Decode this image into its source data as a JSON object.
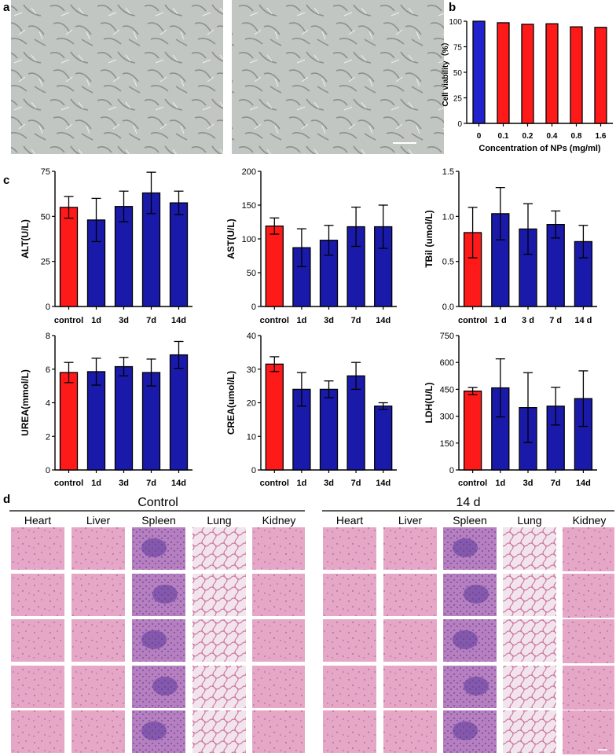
{
  "colors": {
    "control": "#ff1a1a",
    "treated": "#1a1aaa",
    "panel_a_bg": "#c4c7c4",
    "he_pink": "#e7a9c8",
    "he_purple": "#8a5fb4"
  },
  "panel_labels": {
    "a": "a",
    "b": "b",
    "c": "c",
    "d": "d"
  },
  "chart_data": [
    {
      "id": "b",
      "type": "bar",
      "categories": [
        "0",
        "0.1",
        "0.2",
        "0.4",
        "0.8",
        "1.6"
      ],
      "values": [
        100,
        98.5,
        97,
        97.5,
        94.5,
        94
      ],
      "bar_colors": [
        "#2222cc",
        "#ff1a1a",
        "#ff1a1a",
        "#ff1a1a",
        "#ff1a1a",
        "#ff1a1a"
      ],
      "xlabel": "Concentration of NPs (mg/ml)",
      "ylabel": "Cell viability（%）",
      "ylim": [
        0,
        100
      ],
      "yticks": [
        0,
        25,
        50,
        75,
        100
      ]
    },
    {
      "id": "alt",
      "type": "bar",
      "categories": [
        "control",
        "1d",
        "3d",
        "7d",
        "14d"
      ],
      "values": [
        55,
        48,
        55.5,
        63,
        57.5
      ],
      "errors": [
        6,
        12,
        8.5,
        11.5,
        6.5
      ],
      "ylabel": "ALT(U/L)",
      "ylim": [
        0,
        75
      ],
      "yticks": [
        0,
        25,
        50,
        75
      ]
    },
    {
      "id": "ast",
      "type": "bar",
      "categories": [
        "control",
        "1d",
        "3d",
        "7d",
        "14d"
      ],
      "values": [
        119,
        87,
        98,
        118,
        118
      ],
      "errors": [
        12,
        28,
        22,
        29,
        32
      ],
      "ylabel": "AST(U/L)",
      "ylim": [
        0,
        200
      ],
      "yticks": [
        0,
        50,
        100,
        150,
        200
      ]
    },
    {
      "id": "tbil",
      "type": "bar",
      "categories": [
        "control",
        "1 d",
        "3 d",
        "7 d",
        "14 d"
      ],
      "values": [
        0.82,
        1.03,
        0.86,
        0.91,
        0.72
      ],
      "errors": [
        0.28,
        0.29,
        0.28,
        0.15,
        0.18
      ],
      "ylabel": "TBil (umol/L)",
      "ylim": [
        0,
        1.5
      ],
      "yticks": [
        0.0,
        0.5,
        1.0,
        1.5
      ]
    },
    {
      "id": "urea",
      "type": "bar",
      "categories": [
        "control",
        "1d",
        "3d",
        "7d",
        "14d"
      ],
      "values": [
        5.8,
        5.85,
        6.15,
        5.8,
        6.85
      ],
      "errors": [
        0.6,
        0.8,
        0.55,
        0.8,
        0.8
      ],
      "ylabel": "UREA(mmol/L)",
      "ylim": [
        0,
        8
      ],
      "yticks": [
        0,
        2,
        4,
        6,
        8
      ]
    },
    {
      "id": "crea",
      "type": "bar",
      "categories": [
        "control",
        "1d",
        "3d",
        "7d",
        "14d"
      ],
      "values": [
        31.5,
        24,
        24,
        28,
        19
      ],
      "errors": [
        2.2,
        5,
        2.5,
        4,
        1
      ],
      "ylabel": "CREA(umol/L)",
      "ylim": [
        0,
        40
      ],
      "yticks": [
        0,
        10,
        20,
        30,
        40
      ]
    },
    {
      "id": "ldh",
      "type": "bar",
      "categories": [
        "control",
        "1d",
        "3d",
        "7d",
        "14d"
      ],
      "values": [
        440,
        458,
        348,
        356,
        398
      ],
      "errors": [
        20,
        162,
        195,
        105,
        155
      ],
      "ylabel": "LDH(U/L)",
      "ylim": [
        0,
        750
      ],
      "yticks": [
        0,
        150,
        300,
        450,
        600,
        750
      ]
    }
  ],
  "panel_d": {
    "groups": [
      "Control",
      "14 d"
    ],
    "organs": [
      "Heart",
      "Liver",
      "Spleen",
      "Lung",
      "Kidney"
    ]
  }
}
